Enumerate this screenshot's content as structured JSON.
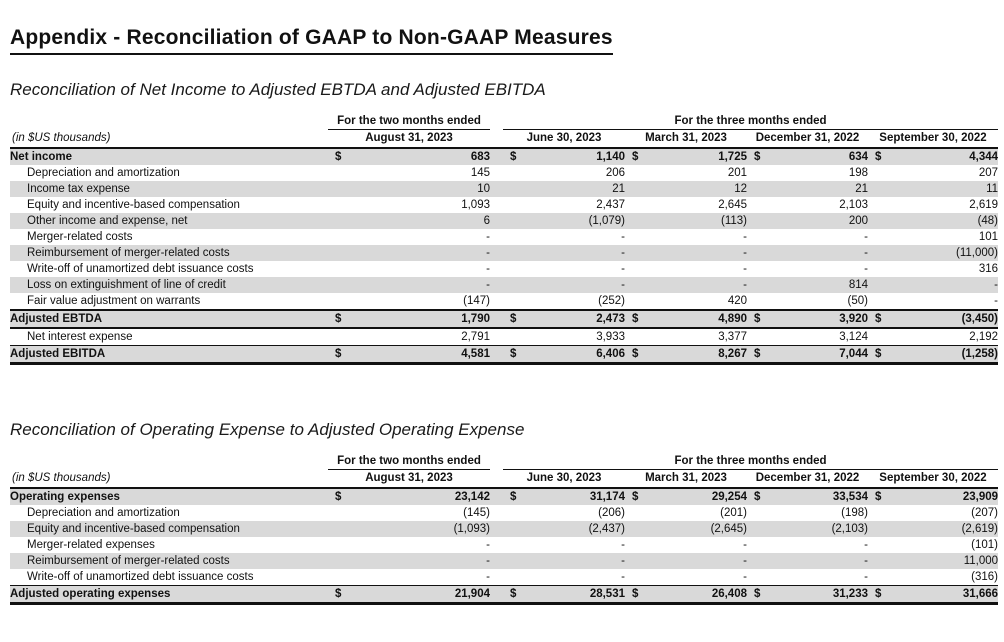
{
  "page_title": "Appendix - Reconciliation of GAAP to Non-GAAP Measures",
  "colors": {
    "row_shade": "#d9d9d9",
    "border": "#111111",
    "background": "#ffffff"
  },
  "tables": [
    {
      "subtitle": "Reconciliation of Net Income to Adjusted EBTDA and Adjusted EBITDA",
      "unit_note": "(in $US thousands)",
      "group_left": "For the two months ended",
      "group_right": "For the three months ended",
      "columns": [
        "August 31, 2023",
        "June 30, 2023",
        "March 31, 2023",
        "December 31, 2022",
        "September 30, 2022"
      ],
      "rows": [
        {
          "label": "Net income",
          "bold": true,
          "dollar": true,
          "values": [
            "683",
            "1,140",
            "1,725",
            "634",
            "4,344"
          ]
        },
        {
          "label": "Depreciation and amortization",
          "bold": false,
          "dollar": false,
          "values": [
            "145",
            "206",
            "201",
            "198",
            "207"
          ]
        },
        {
          "label": "Income tax expense",
          "bold": false,
          "dollar": false,
          "values": [
            "10",
            "21",
            "12",
            "21",
            "11"
          ]
        },
        {
          "label": "Equity and incentive-based compensation",
          "bold": false,
          "dollar": false,
          "values": [
            "1,093",
            "2,437",
            "2,645",
            "2,103",
            "2,619"
          ]
        },
        {
          "label": "Other income and expense, net",
          "bold": false,
          "dollar": false,
          "values": [
            "6",
            "(1,079)",
            "(113)",
            "200",
            "(48)"
          ]
        },
        {
          "label": "Merger-related costs",
          "bold": false,
          "dollar": false,
          "values": [
            "-",
            "-",
            "-",
            "-",
            "101"
          ]
        },
        {
          "label": "Reimbursement of merger-related costs",
          "bold": false,
          "dollar": false,
          "values": [
            "-",
            "-",
            "-",
            "-",
            "(11,000)"
          ]
        },
        {
          "label": "Write-off of unamortized debt issuance costs",
          "bold": false,
          "dollar": false,
          "values": [
            "-",
            "-",
            "-",
            "-",
            "316"
          ]
        },
        {
          "label": "Loss on extinguishment of line of credit",
          "bold": false,
          "dollar": false,
          "values": [
            "-",
            "-",
            "-",
            "814",
            "-"
          ]
        },
        {
          "label": "Fair value adjustment on warrants",
          "bold": false,
          "dollar": false,
          "values": [
            "(147)",
            "(252)",
            "420",
            "(50)",
            "-"
          ]
        },
        {
          "label": "Adjusted EBTDA",
          "bold": true,
          "dollar": true,
          "total": "sub",
          "values": [
            "1,790",
            "2,473",
            "4,890",
            "3,920",
            "(3,450)"
          ]
        },
        {
          "label": "Net interest expense",
          "bold": false,
          "dollar": false,
          "values": [
            "2,791",
            "3,933",
            "3,377",
            "3,124",
            "2,192"
          ]
        },
        {
          "label": "Adjusted EBITDA",
          "bold": true,
          "dollar": true,
          "total": "final",
          "values": [
            "4,581",
            "6,406",
            "8,267",
            "7,044",
            "(1,258)"
          ]
        }
      ]
    },
    {
      "subtitle": "Reconciliation of Operating Expense to Adjusted Operating Expense",
      "unit_note": "(in $US thousands)",
      "group_left": "For the two months ended",
      "group_right": "For the three months ended",
      "columns": [
        "August 31, 2023",
        "June 30, 2023",
        "March 31, 2023",
        "December 31, 2022",
        "September 30, 2022"
      ],
      "rows": [
        {
          "label": "Operating expenses",
          "bold": true,
          "dollar": true,
          "values": [
            "23,142",
            "31,174",
            "29,254",
            "33,534",
            "23,909"
          ]
        },
        {
          "label": "Depreciation and amortization",
          "bold": false,
          "dollar": false,
          "values": [
            "(145)",
            "(206)",
            "(201)",
            "(198)",
            "(207)"
          ]
        },
        {
          "label": "Equity and incentive-based compensation",
          "bold": false,
          "dollar": false,
          "values": [
            "(1,093)",
            "(2,437)",
            "(2,645)",
            "(2,103)",
            "(2,619)"
          ]
        },
        {
          "label": "Merger-related expenses",
          "bold": false,
          "dollar": false,
          "values": [
            "-",
            "-",
            "-",
            "-",
            "(101)"
          ]
        },
        {
          "label": "Reimbursement of merger-related costs",
          "bold": false,
          "dollar": false,
          "values": [
            "-",
            "-",
            "-",
            "-",
            "11,000"
          ]
        },
        {
          "label": "Write-off of unamortized debt issuance costs",
          "bold": false,
          "dollar": false,
          "values": [
            "-",
            "-",
            "-",
            "-",
            "(316)"
          ]
        },
        {
          "label": "Adjusted operating expenses",
          "bold": true,
          "dollar": true,
          "total": "final",
          "values": [
            "21,904",
            "28,531",
            "26,408",
            "31,233",
            "31,666"
          ]
        }
      ]
    }
  ]
}
